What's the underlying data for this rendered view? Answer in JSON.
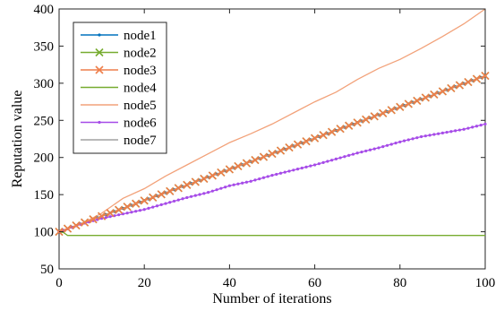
{
  "chart_data": {
    "type": "line",
    "xlabel": "Number of iterations",
    "ylabel": "Reputation value",
    "xlim": [
      0,
      100
    ],
    "ylim": [
      50,
      400
    ],
    "xticks": [
      0,
      20,
      40,
      60,
      80,
      100
    ],
    "yticks": [
      50,
      100,
      150,
      200,
      250,
      300,
      350,
      400
    ],
    "grid": false,
    "legend_position": "top-left",
    "series": [
      {
        "name": "node1",
        "color": "#0072BD",
        "marker": "point",
        "points": [
          [
            0,
            100
          ],
          [
            100,
            310
          ]
        ]
      },
      {
        "name": "node2",
        "color": "#77AC30",
        "marker": "x",
        "points": [
          [
            0,
            100
          ],
          [
            100,
            310
          ]
        ]
      },
      {
        "name": "node3",
        "color": "#EE7F4B",
        "marker": "x",
        "points": [
          [
            0,
            100
          ],
          [
            100,
            310
          ]
        ]
      },
      {
        "name": "node4",
        "color": "#77AC30",
        "marker": "none",
        "points": [
          [
            0,
            100
          ],
          [
            1,
            99
          ],
          [
            2,
            95
          ],
          [
            100,
            95
          ]
        ]
      },
      {
        "name": "node5",
        "color": "#F2A27A",
        "marker": "none",
        "points": [
          [
            0,
            100
          ],
          [
            5,
            110
          ],
          [
            10,
            125
          ],
          [
            15,
            145
          ],
          [
            20,
            158
          ],
          [
            25,
            175
          ],
          [
            30,
            190
          ],
          [
            35,
            205
          ],
          [
            40,
            220
          ],
          [
            45,
            232
          ],
          [
            50,
            245
          ],
          [
            55,
            260
          ],
          [
            60,
            275
          ],
          [
            65,
            288
          ],
          [
            70,
            305
          ],
          [
            75,
            320
          ],
          [
            80,
            332
          ],
          [
            85,
            347
          ],
          [
            90,
            363
          ],
          [
            95,
            380
          ],
          [
            100,
            400
          ]
        ]
      },
      {
        "name": "node6",
        "color": "#A64BE8",
        "marker": "point",
        "points": [
          [
            0,
            100
          ],
          [
            5,
            110
          ],
          [
            10,
            118
          ],
          [
            15,
            124
          ],
          [
            20,
            130
          ],
          [
            25,
            138
          ],
          [
            30,
            146
          ],
          [
            35,
            153
          ],
          [
            40,
            162
          ],
          [
            45,
            168
          ],
          [
            50,
            176
          ],
          [
            55,
            183
          ],
          [
            60,
            190
          ],
          [
            65,
            198
          ],
          [
            70,
            206
          ],
          [
            75,
            213
          ],
          [
            80,
            221
          ],
          [
            85,
            228
          ],
          [
            90,
            233
          ],
          [
            95,
            238
          ],
          [
            100,
            245
          ]
        ]
      },
      {
        "name": "node7",
        "color": "#A0A0A0",
        "marker": "none",
        "points": [
          [
            0,
            100
          ],
          [
            100,
            310
          ]
        ]
      }
    ]
  }
}
